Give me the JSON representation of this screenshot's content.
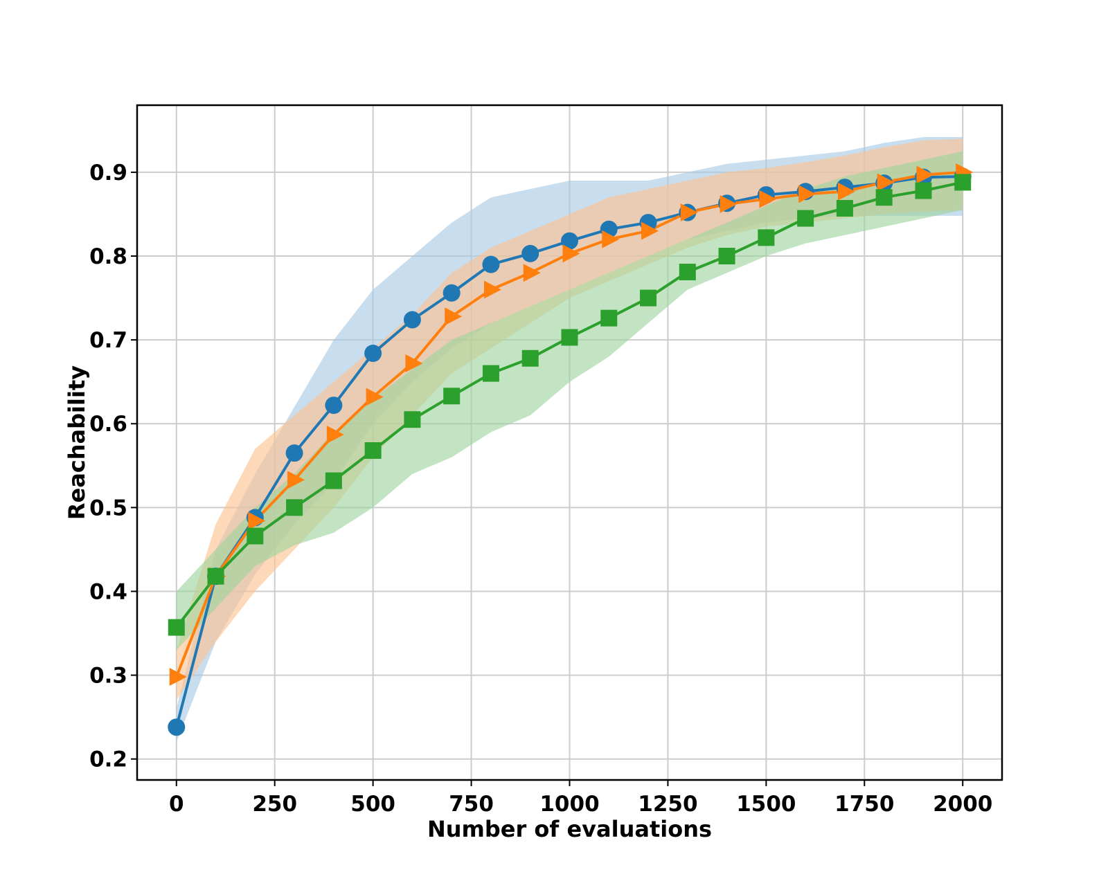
{
  "chart_data": {
    "type": "line",
    "xlabel": "Number of evaluations",
    "ylabel": "Reachability",
    "xlim": [
      -100,
      2100
    ],
    "ylim": [
      0.175,
      0.98
    ],
    "xticks": [
      0,
      250,
      500,
      750,
      1000,
      1250,
      1500,
      1750,
      2000
    ],
    "xtick_labels": [
      "0",
      "250",
      "500",
      "750",
      "1000",
      "1250",
      "1500",
      "1750",
      "2000"
    ],
    "yticks": [
      0.2,
      0.3,
      0.4,
      0.5,
      0.6,
      0.7,
      0.8,
      0.9
    ],
    "ytick_labels": [
      "0.2",
      "0.3",
      "0.4",
      "0.5",
      "0.6",
      "0.7",
      "0.8",
      "0.9"
    ],
    "grid": true,
    "x": [
      0,
      100,
      200,
      300,
      400,
      500,
      600,
      700,
      800,
      900,
      1000,
      1100,
      1200,
      1300,
      1400,
      1500,
      1600,
      1700,
      1800,
      1900,
      2000
    ],
    "series": [
      {
        "color": "#1f77b4",
        "band_color": "#a6c9e4",
        "marker": "circle",
        "values": [
          0.238,
          0.418,
          0.488,
          0.565,
          0.622,
          0.684,
          0.724,
          0.756,
          0.79,
          0.803,
          0.818,
          0.832,
          0.84,
          0.852,
          0.863,
          0.873,
          0.877,
          0.882,
          0.887,
          0.894,
          0.895
        ],
        "lower": [
          0.22,
          0.34,
          0.42,
          0.48,
          0.53,
          0.6,
          0.65,
          0.69,
          0.72,
          0.74,
          0.76,
          0.78,
          0.8,
          0.82,
          0.83,
          0.84,
          0.845,
          0.848,
          0.848,
          0.848,
          0.848
        ],
        "upper": [
          0.26,
          0.45,
          0.54,
          0.62,
          0.7,
          0.76,
          0.8,
          0.84,
          0.87,
          0.88,
          0.89,
          0.89,
          0.89,
          0.9,
          0.91,
          0.915,
          0.92,
          0.925,
          0.935,
          0.942,
          0.942
        ]
      },
      {
        "color": "#ff7f0e",
        "band_color": "#fdc28e",
        "marker": "triangle-right",
        "values": [
          0.298,
          0.418,
          0.484,
          0.533,
          0.587,
          0.632,
          0.672,
          0.728,
          0.76,
          0.78,
          0.803,
          0.82,
          0.83,
          0.852,
          0.862,
          0.868,
          0.874,
          0.877,
          0.888,
          0.897,
          0.9
        ],
        "lower": [
          0.27,
          0.34,
          0.4,
          0.45,
          0.5,
          0.56,
          0.61,
          0.66,
          0.69,
          0.72,
          0.75,
          0.77,
          0.79,
          0.81,
          0.825,
          0.835,
          0.84,
          0.845,
          0.85,
          0.853,
          0.855
        ],
        "upper": [
          0.33,
          0.48,
          0.57,
          0.61,
          0.65,
          0.69,
          0.73,
          0.78,
          0.81,
          0.83,
          0.85,
          0.87,
          0.88,
          0.89,
          0.9,
          0.905,
          0.912,
          0.92,
          0.93,
          0.938,
          0.94
        ]
      },
      {
        "color": "#2ca02c",
        "band_color": "#9dd49d",
        "marker": "square",
        "values": [
          0.357,
          0.418,
          0.466,
          0.5,
          0.532,
          0.568,
          0.605,
          0.633,
          0.66,
          0.678,
          0.703,
          0.726,
          0.75,
          0.781,
          0.8,
          0.822,
          0.845,
          0.857,
          0.87,
          0.878,
          0.888
        ],
        "lower": [
          0.33,
          0.38,
          0.43,
          0.455,
          0.47,
          0.5,
          0.54,
          0.56,
          0.59,
          0.61,
          0.65,
          0.68,
          0.72,
          0.76,
          0.78,
          0.8,
          0.815,
          0.825,
          0.835,
          0.845,
          0.855
        ],
        "upper": [
          0.4,
          0.45,
          0.5,
          0.54,
          0.59,
          0.63,
          0.665,
          0.7,
          0.72,
          0.74,
          0.76,
          0.78,
          0.8,
          0.82,
          0.84,
          0.86,
          0.88,
          0.895,
          0.905,
          0.915,
          0.925
        ]
      }
    ]
  }
}
